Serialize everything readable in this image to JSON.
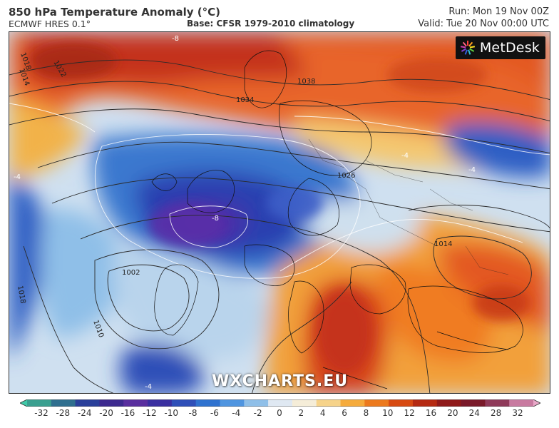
{
  "header": {
    "title": "850 hPa Temperature Anomaly (°C)",
    "model": "ECMWF HRES 0.1°",
    "base": "Base: CFSR 1979-2010 climatology",
    "run": "Run: Mon 19 Nov 00Z",
    "valid": "Valid: Tue 20 Nov 00:00 UTC"
  },
  "logo": {
    "name": "MetDesk",
    "icon": "metdesk-logo-icon"
  },
  "watermark": "WXCHARTS.EU",
  "isobars": {
    "labels": [
      "-8",
      "1018",
      "1014",
      "1022",
      "1038",
      "1034",
      "1026",
      "1002",
      "1010",
      "-8",
      "1018",
      "1014",
      "-4",
      "-4",
      "-4",
      "-4"
    ]
  },
  "colorbar": {
    "ticks": [
      "-32",
      "-28",
      "-24",
      "-20",
      "-16",
      "-12",
      "-10",
      "-8",
      "-6",
      "-4",
      "-2",
      "0",
      "2",
      "4",
      "6",
      "8",
      "10",
      "12",
      "16",
      "20",
      "24",
      "28",
      "32"
    ],
    "colors": [
      "#3fc9a8",
      "#3a9f8f",
      "#2f6f8f",
      "#2a3f9a",
      "#3d2a8f",
      "#5a2f9f",
      "#3a2fa0",
      "#2f4fb8",
      "#2f72cf",
      "#4f95e0",
      "#8fbfe8",
      "#dfe8f2",
      "#f5edd8",
      "#f6d38a",
      "#f5ab3c",
      "#ec7a1e",
      "#d74a12",
      "#b52a12",
      "#8f1a1a",
      "#7a1a2a",
      "#8f3a5a",
      "#c87aa0",
      "#e8a8c8"
    ]
  }
}
